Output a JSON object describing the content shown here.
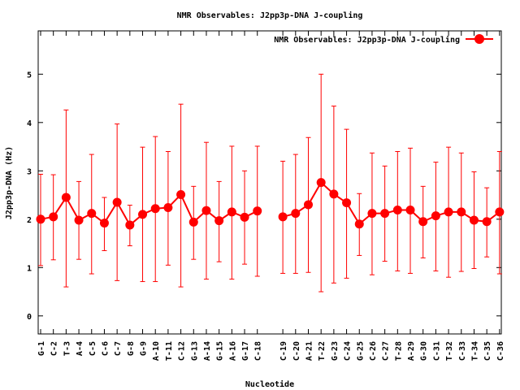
{
  "chart_data": {
    "type": "line",
    "title": "NMR Observables: J2pp3p-DNA J-coupling",
    "xlabel": "Nucleotide",
    "ylabel": "J2pp3p-DNA (Hz)",
    "ylim": [
      -0.37,
      5.9
    ],
    "yticks": [
      "0",
      "1",
      "2",
      "3",
      "4",
      "5"
    ],
    "legend": {
      "label": "NMR Observables: J2pp3p-DNA J-coupling",
      "placement": "top-right"
    },
    "series_color": "#ff0000",
    "categories": [
      "G-1",
      "C-2",
      "T-3",
      "A-4",
      "C-5",
      "C-6",
      "C-7",
      "G-8",
      "G-9",
      "A-10",
      "T-11",
      "C-12",
      "G-13",
      "A-14",
      "G-15",
      "A-16",
      "G-17",
      "C-18",
      "C-19",
      "C-20",
      "A-21",
      "T-22",
      "G-23",
      "C-24",
      "G-25",
      "C-26",
      "C-27",
      "T-28",
      "A-29",
      "G-30",
      "C-31",
      "T-32",
      "C-33",
      "T-34",
      "C-35",
      "C-36"
    ],
    "gap_after": "C-18",
    "values": [
      2.0,
      2.05,
      2.45,
      1.98,
      2.12,
      1.92,
      2.35,
      1.88,
      2.1,
      2.22,
      2.24,
      2.51,
      1.94,
      2.18,
      1.97,
      2.15,
      2.04,
      2.17,
      2.05,
      2.12,
      2.3,
      2.76,
      2.52,
      2.34,
      1.9,
      2.12,
      2.12,
      2.19,
      2.19,
      1.95,
      2.07,
      2.15,
      2.15,
      1.98,
      1.95,
      2.15
    ],
    "err_high": [
      2.93,
      2.92,
      4.26,
      2.78,
      3.34,
      2.45,
      3.97,
      2.29,
      3.49,
      3.71,
      3.4,
      4.38,
      2.68,
      3.59,
      2.78,
      3.51,
      3.0,
      3.51,
      3.2,
      3.34,
      3.69,
      5.0,
      4.34,
      3.86,
      2.53,
      3.37,
      3.1,
      3.4,
      3.47,
      2.68,
      3.18,
      3.49,
      3.37,
      2.98,
      2.65,
      3.4
    ],
    "err_low": [
      1.04,
      1.16,
      0.6,
      1.17,
      0.87,
      1.35,
      0.73,
      1.45,
      0.71,
      0.71,
      1.05,
      0.6,
      1.17,
      0.76,
      1.12,
      0.76,
      1.07,
      0.82,
      0.88,
      0.88,
      0.9,
      0.5,
      0.68,
      0.78,
      1.25,
      0.85,
      1.13,
      0.93,
      0.88,
      1.2,
      0.93,
      0.8,
      0.92,
      0.98,
      1.22,
      0.87
    ]
  }
}
